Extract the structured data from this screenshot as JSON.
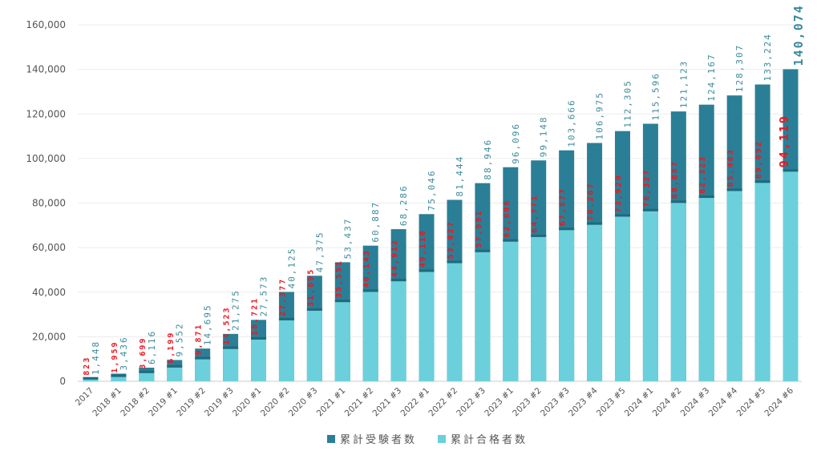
{
  "chart_data": {
    "type": "bar",
    "stacked": "overlay",
    "title": "",
    "xlabel": "",
    "ylabel": "",
    "ylim": [
      0,
      160000
    ],
    "yticks": [
      "0",
      "20,000",
      "40,000",
      "60,000",
      "80,000",
      "100,000",
      "120,000",
      "140,000",
      "160,000"
    ],
    "grid": true,
    "legend_position": "bottom",
    "categories": [
      "2017",
      "2018 #1",
      "2018 #2",
      "2019 #1",
      "2019 #2",
      "2019 #3",
      "2020 #1",
      "2020 #2",
      "2020 #3",
      "2021 #1",
      "2021 #2",
      "2021 #3",
      "2022 #1",
      "2022 #2",
      "2022 #3",
      "2023 #1",
      "2023 #2",
      "2023 #3",
      "2023 #4",
      "2023 #5",
      "2024 #1",
      "2024 #2",
      "2024 #3",
      "2024 #4",
      "2024 #5",
      "2024 #6"
    ],
    "series": [
      {
        "name": "累計受験者数",
        "color": "#2a7f96",
        "values": [
          1448,
          3436,
          6116,
          9552,
          14695,
          21275,
          27573,
          40125,
          47375,
          53437,
          60887,
          68286,
          75046,
          81444,
          88946,
          96096,
          99148,
          103666,
          106975,
          112305,
          115596,
          121123,
          124167,
          128307,
          133224,
          140074
        ],
        "labels": [
          "1,448",
          "3,436",
          "6,116",
          "9,552",
          "14,695",
          "21,275",
          "27,573",
          "40,125",
          "47,375",
          "53,437",
          "60,887",
          "68,286",
          "75,046",
          "81,444",
          "88,946",
          "96,096",
          "99,148",
          "103,666",
          "106,975",
          "112,305",
          "115,596",
          "121,123",
          "124,167",
          "128,307",
          "133,224",
          "140,074"
        ]
      },
      {
        "name": "累計合格者数",
        "color": "#6bd0dc",
        "values": [
          823,
          1959,
          3699,
          6199,
          9871,
          14523,
          18721,
          27377,
          31695,
          35551,
          40143,
          44912,
          49110,
          53027,
          57991,
          62696,
          64771,
          67877,
          70267,
          73929,
          76327,
          80087,
          82323,
          85403,
          89092,
          94119
        ],
        "labels": [
          "823",
          "1,959",
          "3,699",
          "6,199",
          "9,871",
          "14,523",
          "18,721",
          "27,377",
          "31,695",
          "35,551",
          "40,143",
          "44,912",
          "49,110",
          "53,027",
          "57,991",
          "62,696",
          "64,771",
          "67,877",
          "70,267",
          "73,929",
          "76,327",
          "80,087",
          "82,323",
          "85,403",
          "89,092",
          "94,119"
        ]
      }
    ]
  }
}
